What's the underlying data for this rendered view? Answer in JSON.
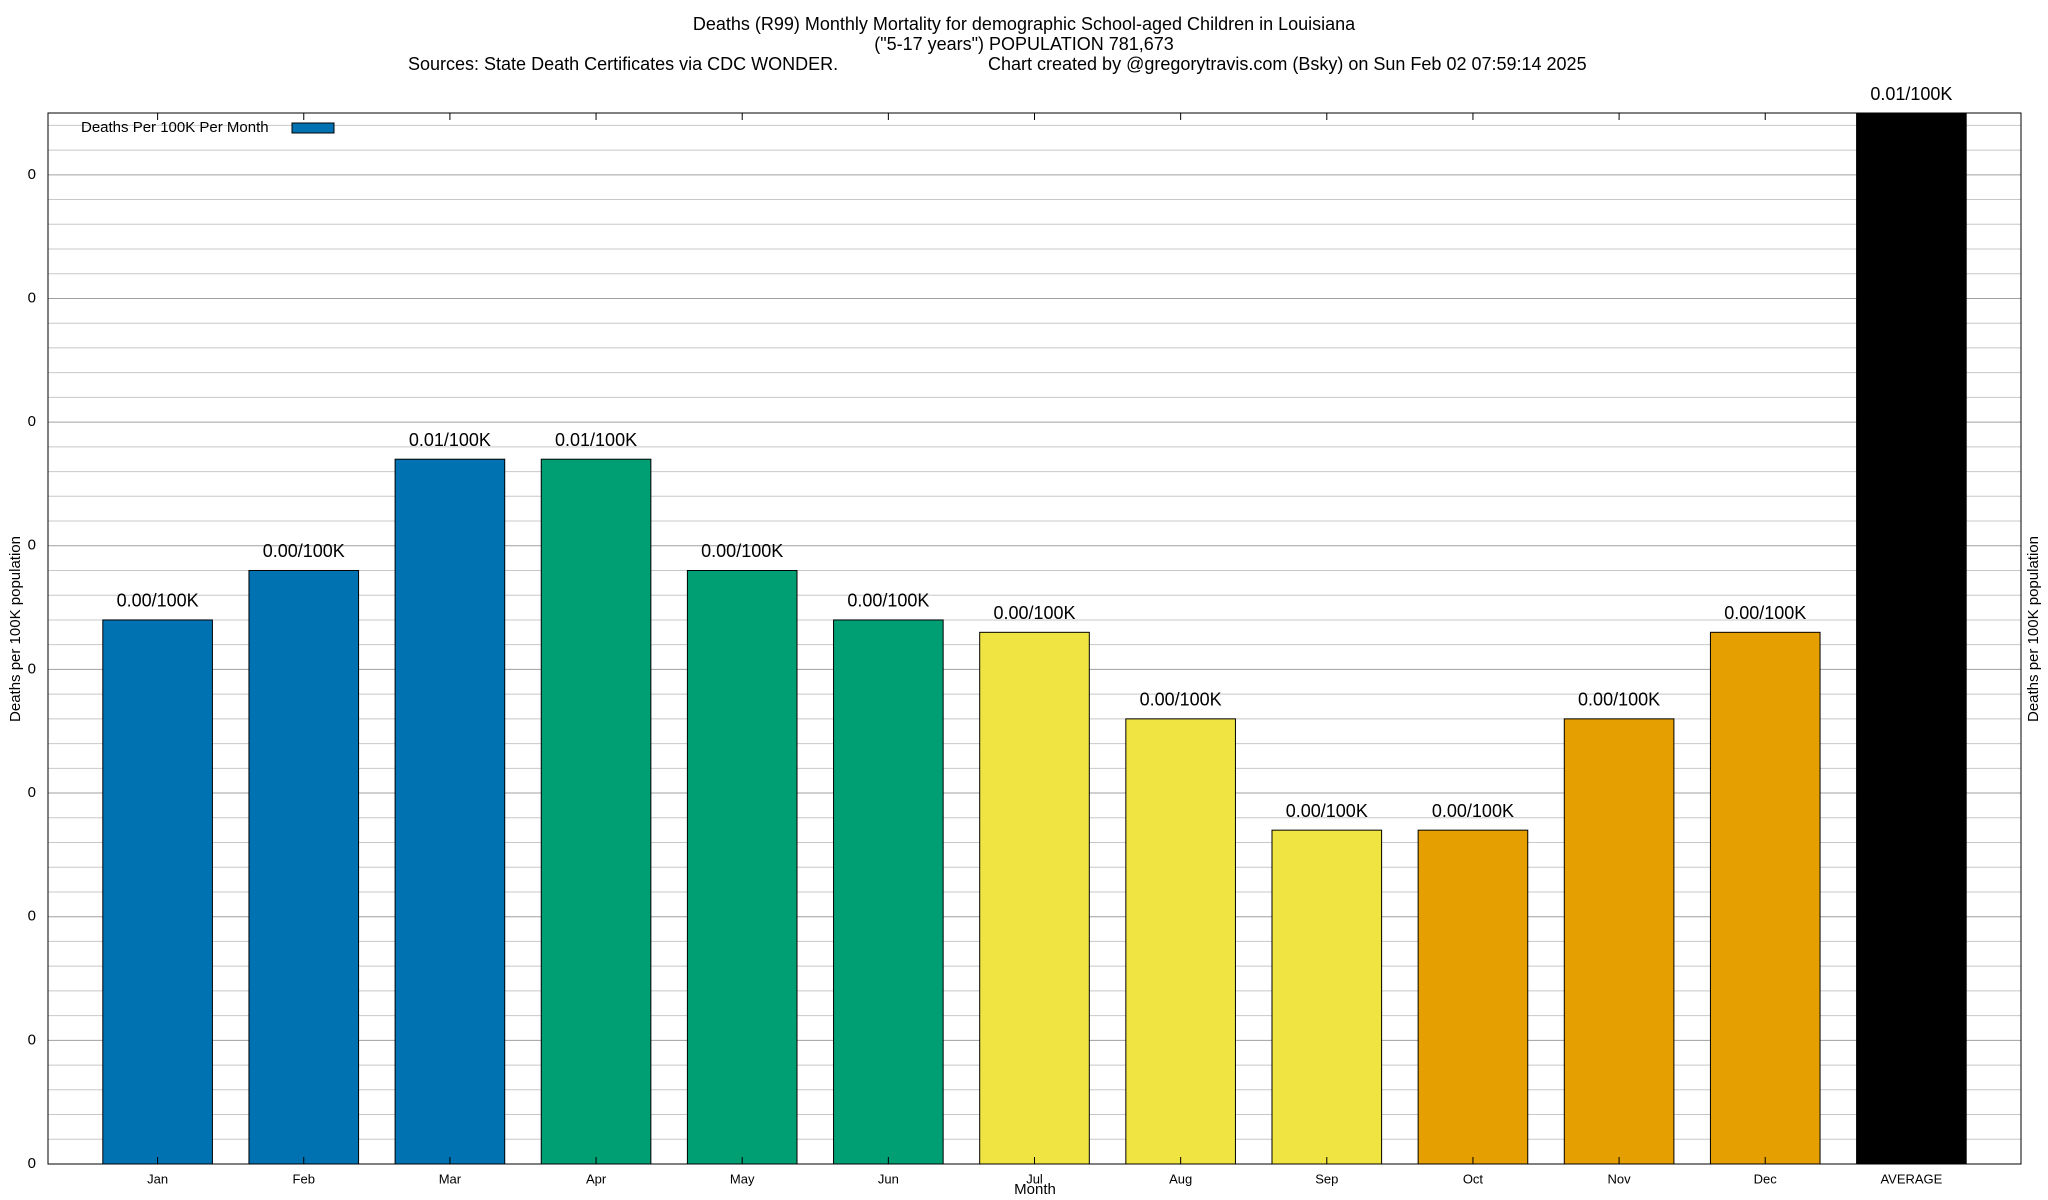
{
  "chart_data": {
    "type": "bar",
    "title": "Deaths (R99) Monthly Mortality for demographic School-aged Children in Louisiana",
    "subtitle": "(\"5-17 years\") POPULATION 781,673",
    "source": "Sources: State Death Certificates via CDC WONDER.",
    "credit": "Chart created by @gregorytravis.com (Bsky) on Sun Feb 02 07:59:14 2025",
    "x_label": "Month",
    "y_label": "Deaths per 100K population",
    "y2_label": "Deaths per 100K population",
    "categories": [
      "Jan",
      "Feb",
      "Mar",
      "Apr",
      "May",
      "Jun",
      "Jul",
      "Aug",
      "Sep",
      "Oct",
      "Nov",
      "Dec",
      "AVERAGE"
    ],
    "series": [
      {
        "name": "Deaths Per 100K Per Month",
        "color": "#0072b2",
        "values": [
          0.0044,
          0.0048,
          0.0057,
          0.0057,
          0.0048,
          0.0044,
          0.0043,
          0.0036,
          0.0027,
          0.0027,
          0.0036,
          0.0043,
          0.0085
        ],
        "value_labels": [
          "0.00/100K",
          "0.00/100K",
          "0.01/100K",
          "0.01/100K",
          "0.00/100K",
          "0.00/100K",
          "0.00/100K",
          "0.00/100K",
          "0.00/100K",
          "0.00/100K",
          "0.00/100K",
          "0.00/100K",
          "0.01/100K"
        ],
        "colors": [
          "#0072b2",
          "#0072b2",
          "#0072b2",
          "#009e73",
          "#009e73",
          "#009e73",
          "#f0e442",
          "#f0e442",
          "#f0e442",
          "#e69f00",
          "#e69f00",
          "#e69f00",
          "#000000"
        ]
      }
    ],
    "ylim": [
      0,
      0.0085
    ],
    "yticks": [
      {
        "value": 0,
        "label": "0"
      },
      {
        "value": 0.001,
        "label": "0"
      },
      {
        "value": 0.002,
        "label": "0"
      },
      {
        "value": 0.003,
        "label": "0"
      },
      {
        "value": 0.004,
        "label": "0"
      },
      {
        "value": 0.005,
        "label": "0"
      },
      {
        "value": 0.006,
        "label": "0"
      },
      {
        "value": 0.007,
        "label": "0"
      },
      {
        "value": 0.008,
        "label": "0"
      }
    ],
    "minor_yticks": [
      0.0002,
      0.0004,
      0.0006,
      0.0008,
      0.0012,
      0.0014,
      0.0016,
      0.0018,
      0.0022,
      0.0024,
      0.0026,
      0.0028,
      0.0032,
      0.0034,
      0.0036,
      0.0038,
      0.0042,
      0.0044,
      0.0046,
      0.0048,
      0.0052,
      0.0054,
      0.0056,
      0.0058,
      0.0062,
      0.0064,
      0.0066,
      0.0068,
      0.0072,
      0.0074,
      0.0076,
      0.0078,
      0.0082,
      0.0084
    ],
    "grid": true,
    "legend": "top-left"
  }
}
